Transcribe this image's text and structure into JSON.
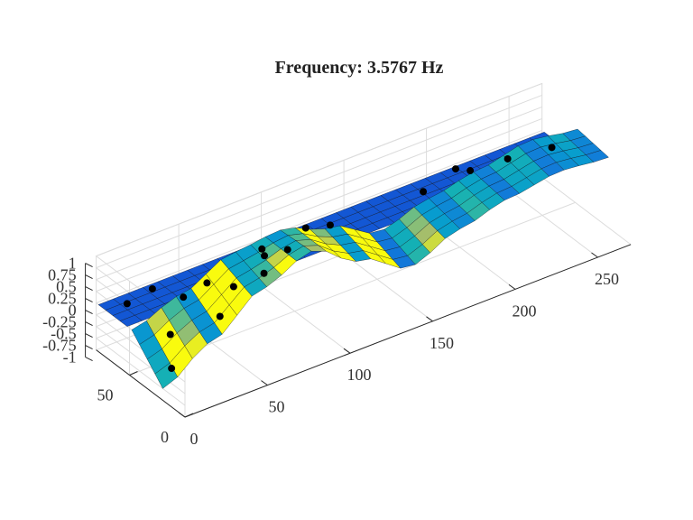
{
  "figure": {
    "title": "Frequency: 3.5767 Hz"
  },
  "chart_data": {
    "type": "surface",
    "title": "Frequency: 3.5767 Hz",
    "x_ticks": [
      "0",
      "50",
      "100",
      "150",
      "200",
      "250"
    ],
    "y_ticks": [
      "0",
      "50"
    ],
    "z_ticks": [
      "1",
      "0.75",
      "0.5",
      "0.25",
      "0",
      "-0.25",
      "-0.5",
      "-0.75",
      "-1"
    ],
    "xlim": [
      0,
      270
    ],
    "ylim": [
      0,
      80
    ],
    "zlim": [
      -1,
      1
    ],
    "grid": true,
    "colormap": "parula",
    "series": [
      {
        "surface": "upper strip",
        "y_range": [
          52,
          78
        ],
        "x": [
          0,
          270
        ],
        "z_near": [
          0.0,
          0.0
        ],
        "z_far": [
          0.0,
          0.0
        ]
      },
      {
        "surface": "lower strip",
        "y_range": [
          20,
          48
        ],
        "x": [
          0,
          30,
          60,
          90,
          120,
          150,
          180,
          210,
          240,
          270
        ],
        "z_near": [
          -0.75,
          -0.15,
          0.55,
          0.95,
          0.35,
          -0.2,
          0.2,
          0.45,
          0.6,
          0.5
        ],
        "z_far": [
          0.0,
          0.35,
          0.8,
          0.9,
          0.55,
          0.05,
          0.35,
          0.55,
          0.75,
          0.6
        ]
      }
    ],
    "sensors": [
      {
        "x": 12,
        "y": 70,
        "z": 0.0
      },
      {
        "x": 30,
        "y": 74,
        "z": 0.0
      },
      {
        "x": 55,
        "y": 62,
        "z": 0.0
      },
      {
        "x": 95,
        "y": 72,
        "z": 0.0
      },
      {
        "x": 135,
        "y": 70,
        "z": 0.0
      },
      {
        "x": 190,
        "y": 68,
        "z": 0.0
      },
      {
        "x": 215,
        "y": 76,
        "z": 0.0
      },
      {
        "x": 38,
        "y": 58,
        "z": 0.0
      },
      {
        "x": 18,
        "y": 40,
        "z": -0.2
      },
      {
        "x": 40,
        "y": 28,
        "z": 0.1
      },
      {
        "x": 55,
        "y": 38,
        "z": 0.35
      },
      {
        "x": 68,
        "y": 30,
        "z": 0.6
      },
      {
        "x": 75,
        "y": 40,
        "z": 0.7
      },
      {
        "x": 85,
        "y": 34,
        "z": 0.8
      },
      {
        "x": 100,
        "y": 40,
        "z": 0.95
      },
      {
        "x": 205,
        "y": 48,
        "z": 0.6
      },
      {
        "x": 225,
        "y": 44,
        "z": 0.65
      },
      {
        "x": 245,
        "y": 34,
        "z": 0.8
      },
      {
        "x": 8,
        "y": 24,
        "z": -0.5
      }
    ]
  }
}
